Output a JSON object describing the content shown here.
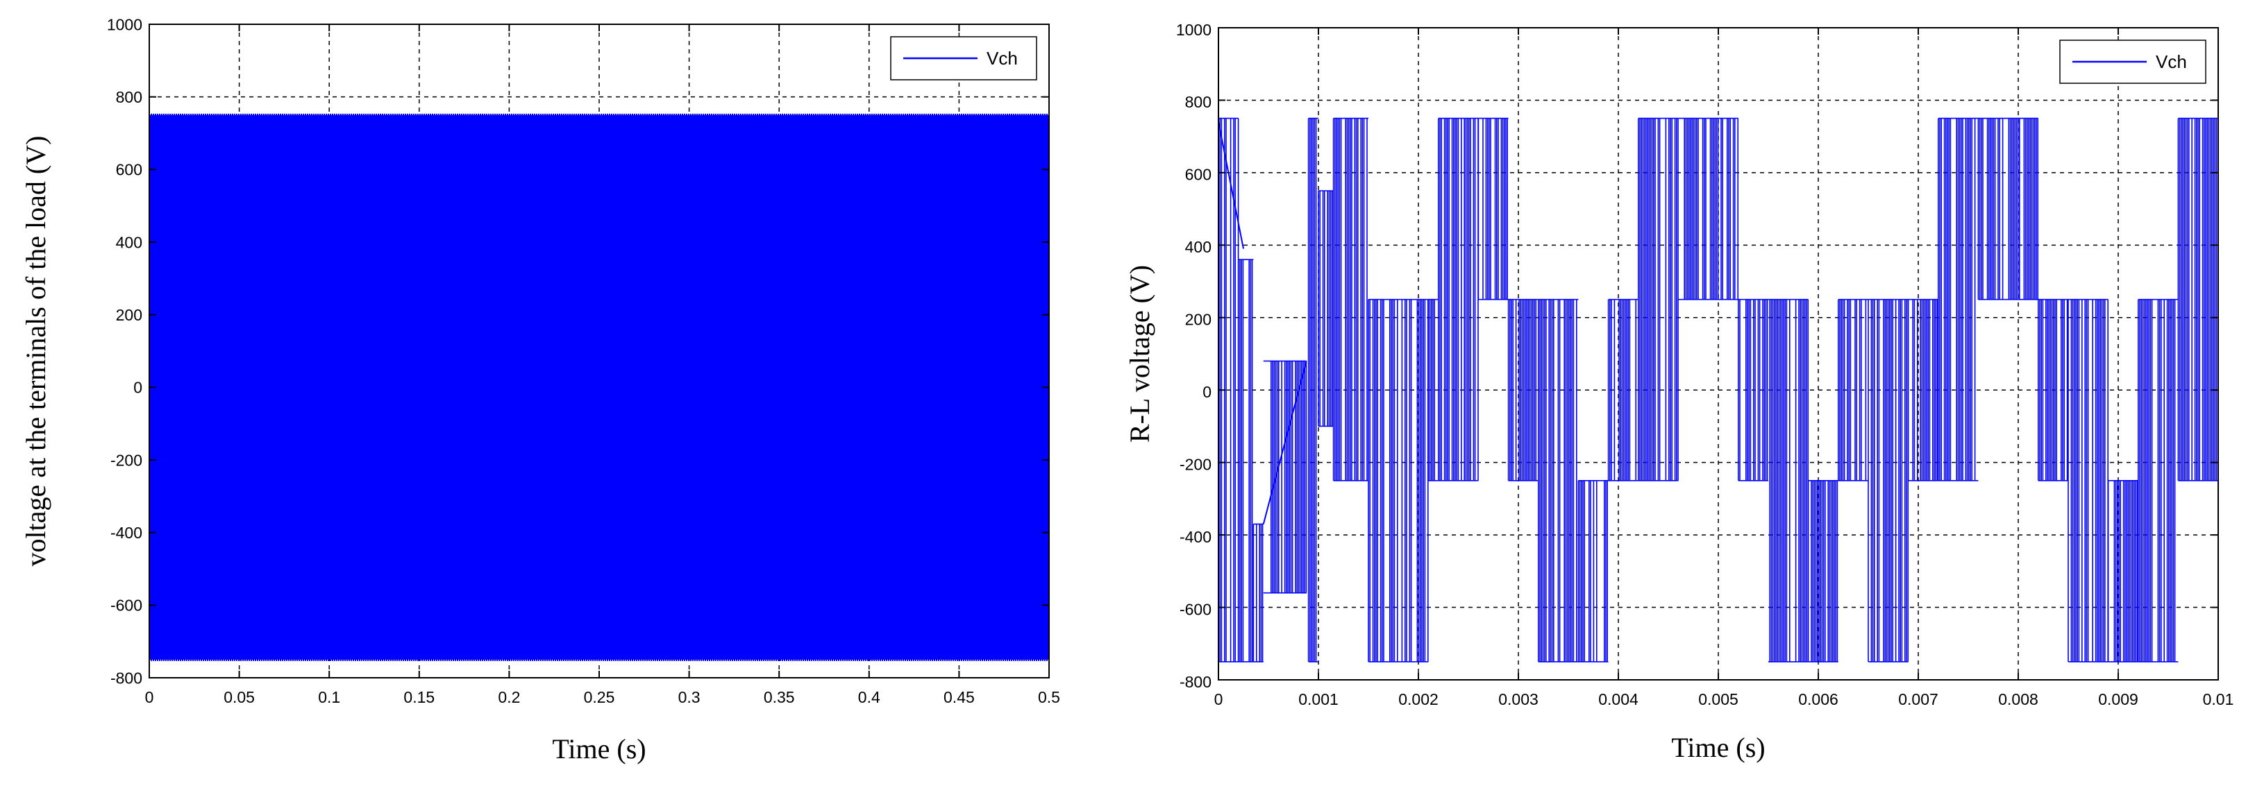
{
  "chart_data": [
    {
      "type": "line",
      "xlabel": "Time (s)",
      "ylabel": "voltage at the terminals of the load (V)",
      "xlim": [
        0,
        0.5
      ],
      "ylim": [
        -800,
        1000
      ],
      "x_ticks": [
        "0",
        "0.05",
        "0.1",
        "0.15",
        "0.2",
        "0.25",
        "0.3",
        "0.35",
        "0.4",
        "0.45",
        "0.5"
      ],
      "y_ticks": [
        "1000",
        "800",
        "600",
        "400",
        "200",
        "0",
        "-200",
        "-400",
        "-600",
        "-800"
      ],
      "grid": true,
      "legend_position": "top-right",
      "line_color": "#0000ff",
      "series": [
        {
          "name": "Vch",
          "description_level_high": 750,
          "description_level_low": -750,
          "x": [
            0,
            0.5
          ],
          "y_max": [
            750,
            750
          ],
          "y_min": [
            -750,
            -750
          ]
        }
      ]
    },
    {
      "type": "line",
      "xlabel": "Time (s)",
      "ylabel": "R-L voltage (V)",
      "xlim": [
        0,
        0.01
      ],
      "ylim": [
        -800,
        1000
      ],
      "x_ticks": [
        "0",
        "0.001",
        "0.002",
        "0.003",
        "0.004",
        "0.005",
        "0.006",
        "0.007",
        "0.008",
        "0.009",
        "0.01"
      ],
      "y_ticks": [
        "1000",
        "800",
        "600",
        "400",
        "200",
        "0",
        "-200",
        "-400",
        "-600",
        "-800"
      ],
      "grid": true,
      "legend_position": "top-right",
      "line_color": "#0000ff",
      "series": [
        {
          "name": "Vch",
          "levels": [
            750,
            250,
            -250,
            -750
          ],
          "segments": [
            {
              "x": [
                0.0,
                0.0002
              ],
              "hi": 750,
              "lo": -750
            },
            {
              "x": [
                0.0002,
                0.00035
              ],
              "hi": 360,
              "lo": -750
            },
            {
              "x": [
                0.00035,
                0.00045
              ],
              "hi": -370,
              "lo": -750
            },
            {
              "x": [
                0.00045,
                0.00088
              ],
              "hi": 80,
              "lo": -560
            },
            {
              "x": [
                0.0009,
                0.001
              ],
              "hi": 750,
              "lo": -750
            },
            {
              "x": [
                0.001,
                0.00115
              ],
              "hi": 550,
              "lo": -100
            },
            {
              "x": [
                0.00115,
                0.0015
              ],
              "hi": 750,
              "lo": -250
            },
            {
              "x": [
                0.0015,
                0.0021
              ],
              "hi": 250,
              "lo": -750
            },
            {
              "x": [
                0.0021,
                0.0022
              ],
              "hi": 250,
              "lo": -250
            },
            {
              "x": [
                0.0022,
                0.0026
              ],
              "hi": 750,
              "lo": -250
            },
            {
              "x": [
                0.0026,
                0.0029
              ],
              "hi": 750,
              "lo": 250
            },
            {
              "x": [
                0.0029,
                0.0032
              ],
              "hi": 250,
              "lo": -250
            },
            {
              "x": [
                0.0032,
                0.0036
              ],
              "hi": 250,
              "lo": -750
            },
            {
              "x": [
                0.0036,
                0.0039
              ],
              "hi": -250,
              "lo": -750
            },
            {
              "x": [
                0.0039,
                0.0042
              ],
              "hi": 250,
              "lo": -250
            },
            {
              "x": [
                0.0042,
                0.0046
              ],
              "hi": 750,
              "lo": -250
            },
            {
              "x": [
                0.0046,
                0.0052
              ],
              "hi": 750,
              "lo": 250
            },
            {
              "x": [
                0.0052,
                0.0055
              ],
              "hi": 250,
              "lo": -250
            },
            {
              "x": [
                0.0055,
                0.0059
              ],
              "hi": 250,
              "lo": -750
            },
            {
              "x": [
                0.0059,
                0.0062
              ],
              "hi": -250,
              "lo": -750
            },
            {
              "x": [
                0.0062,
                0.0065
              ],
              "hi": 250,
              "lo": -250
            },
            {
              "x": [
                0.0065,
                0.0069
              ],
              "hi": 250,
              "lo": -750
            },
            {
              "x": [
                0.0069,
                0.0072
              ],
              "hi": 250,
              "lo": -250
            },
            {
              "x": [
                0.0072,
                0.0076
              ],
              "hi": 750,
              "lo": -250
            },
            {
              "x": [
                0.0076,
                0.0082
              ],
              "hi": 750,
              "lo": 250
            },
            {
              "x": [
                0.0082,
                0.0085
              ],
              "hi": 250,
              "lo": -250
            },
            {
              "x": [
                0.0085,
                0.0089
              ],
              "hi": 250,
              "lo": -750
            },
            {
              "x": [
                0.0089,
                0.0092
              ],
              "hi": -250,
              "lo": -750
            },
            {
              "x": [
                0.0092,
                0.0096
              ],
              "hi": 250,
              "lo": -750
            },
            {
              "x": [
                0.0096,
                0.01
              ],
              "hi": 750,
              "lo": -250
            }
          ]
        }
      ]
    }
  ]
}
